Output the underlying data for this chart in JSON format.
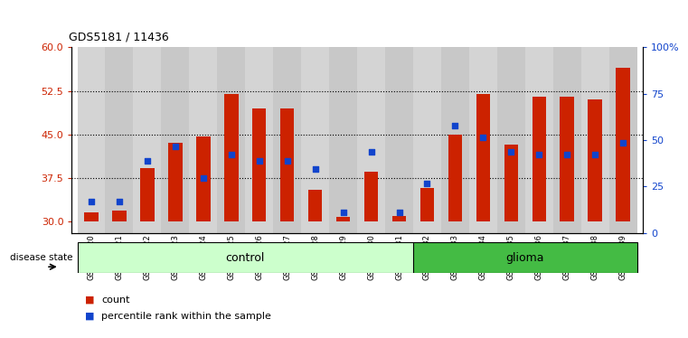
{
  "title": "GDS5181 / 11436",
  "samples": [
    "GSM769920",
    "GSM769921",
    "GSM769922",
    "GSM769923",
    "GSM769924",
    "GSM769925",
    "GSM769926",
    "GSM769927",
    "GSM769928",
    "GSM769929",
    "GSM769930",
    "GSM769931",
    "GSM769932",
    "GSM769933",
    "GSM769934",
    "GSM769935",
    "GSM769936",
    "GSM769937",
    "GSM769938",
    "GSM769939"
  ],
  "bar_tops": [
    31.5,
    31.8,
    39.2,
    43.5,
    44.7,
    52.0,
    49.5,
    49.5,
    35.5,
    30.8,
    38.5,
    31.0,
    35.8,
    45.0,
    52.0,
    43.2,
    51.5,
    51.5,
    51.0,
    56.5
  ],
  "bar_base": 30.0,
  "blue_vals": [
    33.5,
    33.5,
    40.5,
    43.0,
    37.5,
    41.5,
    40.5,
    40.5,
    39.0,
    31.5,
    42.0,
    31.5,
    36.5,
    46.5,
    44.5,
    42.0,
    41.5,
    41.5,
    41.5,
    43.5
  ],
  "ylim_left": [
    28,
    60
  ],
  "ylim_right": [
    0,
    100
  ],
  "yticks_left": [
    30,
    37.5,
    45,
    52.5,
    60
  ],
  "yticks_right": [
    0,
    25,
    50,
    75,
    100
  ],
  "bar_color": "#cc2200",
  "blue_color": "#1144cc",
  "control_count": 12,
  "glioma_count": 8,
  "control_label": "control",
  "glioma_label": "glioma",
  "disease_state_label": "disease state",
  "legend_count": "count",
  "legend_pct": "percentile rank within the sample",
  "bg_col_odd": "#d4d4d4",
  "bg_col_even": "#c8c8c8",
  "bg_control": "#ccffcc",
  "bg_glioma": "#44bb44",
  "bar_width": 0.5
}
